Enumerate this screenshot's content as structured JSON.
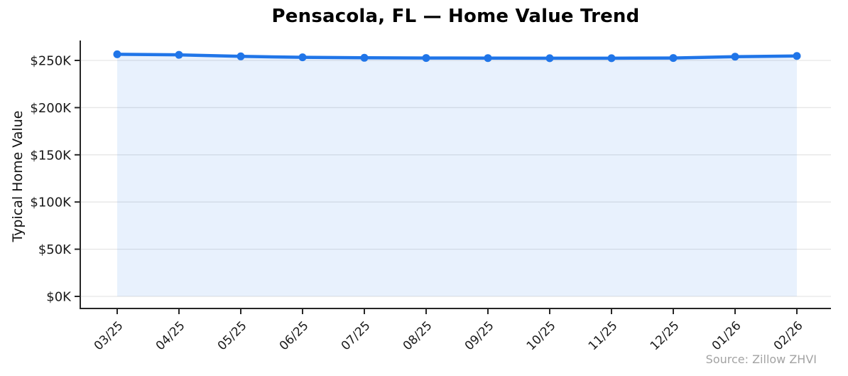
{
  "chart_data": {
    "type": "area",
    "title": "Pensacola, FL — Home Value Trend",
    "ylabel": "Typical Home Value",
    "xlabel": "",
    "source_note": "Source: Zillow ZHVI",
    "legend": "none",
    "grid": "horizontal",
    "categories": [
      "03/25",
      "04/25",
      "05/25",
      "06/25",
      "07/25",
      "08/25",
      "09/25",
      "10/25",
      "11/25",
      "12/25",
      "01/26",
      "02/26"
    ],
    "values": [
      256500,
      255900,
      254300,
      253300,
      252800,
      252600,
      252500,
      252400,
      252400,
      252600,
      254000,
      254700
    ],
    "yticks": [
      {
        "label": "$0K",
        "value": 0
      },
      {
        "label": "$50K",
        "value": 50000
      },
      {
        "label": "$100K",
        "value": 100000
      },
      {
        "label": "$150K",
        "value": 150000
      },
      {
        "label": "$200K",
        "value": 200000
      },
      {
        "label": "$250K",
        "value": 250000
      }
    ],
    "ylim": [
      -12800,
      271100
    ],
    "colors": {
      "line": "#2075e8",
      "marker": "#2075e8",
      "fill": "rgba(32,117,232,0.10)",
      "grid": "#e6e6e6",
      "spine": "#262626",
      "tick_text": "#1a1a1a",
      "title_text": "#000000",
      "source_text": "#a3a3a3",
      "background": "#ffffff"
    }
  }
}
